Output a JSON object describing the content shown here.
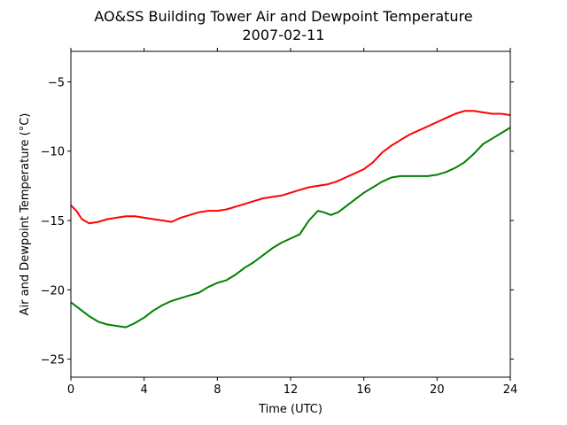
{
  "chart_data": {
    "type": "line",
    "title": "AO&SS Building Tower Air and Dewpoint Temperature",
    "subtitle": "2007-02-11",
    "xlabel": "Time (UTC)",
    "ylabel": "Air and Dewpoint Temperature (°C)",
    "xlim": [
      0,
      24
    ],
    "ylim": [
      -26.3,
      -2.8
    ],
    "xticks": [
      0,
      4,
      8,
      12,
      16,
      20,
      24
    ],
    "yticks": [
      -25,
      -20,
      -15,
      -10,
      -5
    ],
    "ytick_labels": [
      "−25",
      "−20",
      "−15",
      "−10",
      "−5"
    ],
    "grid": false,
    "legend": "none",
    "series": [
      {
        "color": "#ff0000",
        "x": [
          0,
          0.3,
          0.6,
          1.0,
          1.5,
          2.0,
          2.5,
          3.0,
          3.5,
          4.0,
          4.5,
          5.0,
          5.5,
          6.0,
          6.5,
          7.0,
          7.5,
          8.0,
          8.5,
          9.0,
          9.5,
          10.0,
          10.5,
          11.0,
          11.5,
          12.0,
          12.5,
          13.0,
          13.5,
          14.0,
          14.5,
          15.0,
          15.5,
          16.0,
          16.5,
          17.0,
          17.5,
          18.0,
          18.5,
          19.0,
          19.5,
          20.0,
          20.5,
          21.0,
          21.5,
          22.0,
          22.5,
          23.0,
          23.5,
          24.0
        ],
        "values": [
          -13.9,
          -14.3,
          -14.9,
          -15.2,
          -15.1,
          -14.9,
          -14.8,
          -14.7,
          -14.7,
          -14.8,
          -14.9,
          -15.0,
          -15.1,
          -14.8,
          -14.6,
          -14.4,
          -14.3,
          -14.3,
          -14.2,
          -14.0,
          -13.8,
          -13.6,
          -13.4,
          -13.3,
          -13.2,
          -13.0,
          -12.8,
          -12.6,
          -12.5,
          -12.4,
          -12.2,
          -11.9,
          -11.6,
          -11.3,
          -10.8,
          -10.1,
          -9.6,
          -9.2,
          -8.8,
          -8.5,
          -8.2,
          -7.9,
          -7.6,
          -7.3,
          -7.1,
          -7.1,
          -7.2,
          -7.3,
          -7.3,
          -7.4
        ]
      },
      {
        "color": "#008000",
        "x": [
          0,
          0.3,
          0.6,
          1.0,
          1.5,
          2.0,
          2.5,
          3.0,
          3.5,
          4.0,
          4.5,
          5.0,
          5.5,
          6.0,
          6.5,
          7.0,
          7.5,
          8.0,
          8.5,
          9.0,
          9.5,
          10.0,
          10.5,
          11.0,
          11.5,
          12.0,
          12.5,
          13.0,
          13.5,
          13.8,
          14.2,
          14.6,
          15.0,
          15.5,
          16.0,
          16.5,
          17.0,
          17.5,
          18.0,
          18.5,
          19.0,
          19.5,
          20.0,
          20.5,
          21.0,
          21.5,
          22.0,
          22.5,
          23.0,
          23.5,
          24.0
        ],
        "values": [
          -20.9,
          -21.2,
          -21.5,
          -21.9,
          -22.3,
          -22.5,
          -22.6,
          -22.7,
          -22.4,
          -22.0,
          -21.5,
          -21.1,
          -20.8,
          -20.6,
          -20.4,
          -20.2,
          -19.8,
          -19.5,
          -19.3,
          -18.9,
          -18.4,
          -18.0,
          -17.5,
          -17.0,
          -16.6,
          -16.3,
          -16.0,
          -15.0,
          -14.3,
          -14.4,
          -14.6,
          -14.4,
          -14.0,
          -13.5,
          -13.0,
          -12.6,
          -12.2,
          -11.9,
          -11.8,
          -11.8,
          -11.8,
          -11.8,
          -11.7,
          -11.5,
          -11.2,
          -10.8,
          -10.2,
          -9.5,
          -9.1,
          -8.7,
          -8.3
        ]
      }
    ]
  }
}
